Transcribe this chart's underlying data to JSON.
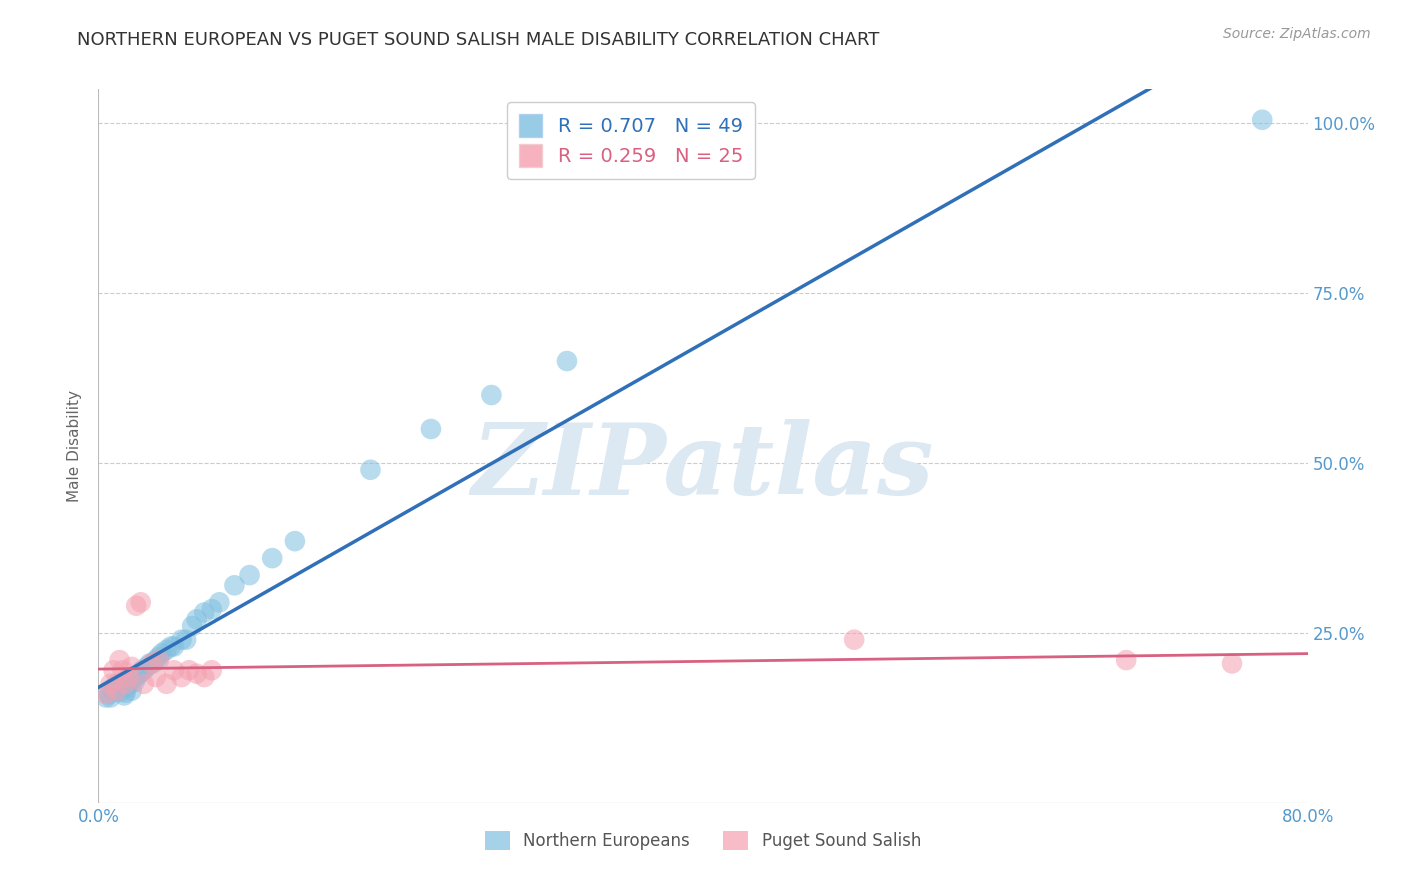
{
  "title": "NORTHERN EUROPEAN VS PUGET SOUND SALISH MALE DISABILITY CORRELATION CHART",
  "source": "Source: ZipAtlas.com",
  "ylabel": "Male Disability",
  "xlim": [
    0.0,
    0.8
  ],
  "ylim": [
    0.0,
    1.05
  ],
  "yticks": [
    0.0,
    0.25,
    0.5,
    0.75,
    1.0
  ],
  "xticks": [
    0.0,
    0.2,
    0.4,
    0.6,
    0.8
  ],
  "ytick_labels": [
    "",
    "25.0%",
    "50.0%",
    "75.0%",
    "100.0%"
  ],
  "xtick_labels": [
    "0.0%",
    "",
    "",
    "",
    "80.0%"
  ],
  "blue_R": 0.707,
  "blue_N": 49,
  "pink_R": 0.259,
  "pink_N": 25,
  "blue_color": "#7fbfdf",
  "pink_color": "#f4a0b0",
  "blue_line_color": "#3070b8",
  "pink_line_color": "#d86080",
  "watermark": "ZIPatlas",
  "watermark_color": "#dce8f2",
  "background_color": "#ffffff",
  "grid_color": "#cccccc",
  "title_color": "#333333",
  "axis_label_color": "#666666",
  "blue_scatter_x": [
    0.005,
    0.007,
    0.008,
    0.01,
    0.01,
    0.012,
    0.013,
    0.014,
    0.015,
    0.016,
    0.017,
    0.018,
    0.019,
    0.02,
    0.021,
    0.022,
    0.023,
    0.024,
    0.025,
    0.026,
    0.027,
    0.028,
    0.029,
    0.03,
    0.032,
    0.034,
    0.036,
    0.038,
    0.04,
    0.042,
    0.045,
    0.048,
    0.05,
    0.055,
    0.058,
    0.062,
    0.065,
    0.07,
    0.075,
    0.08,
    0.09,
    0.1,
    0.115,
    0.13,
    0.18,
    0.22,
    0.26,
    0.31,
    0.77
  ],
  "blue_scatter_y": [
    0.155,
    0.16,
    0.155,
    0.165,
    0.17,
    0.175,
    0.168,
    0.163,
    0.172,
    0.178,
    0.158,
    0.162,
    0.17,
    0.175,
    0.18,
    0.165,
    0.185,
    0.178,
    0.185,
    0.188,
    0.19,
    0.192,
    0.195,
    0.195,
    0.2,
    0.205,
    0.205,
    0.21,
    0.215,
    0.22,
    0.225,
    0.23,
    0.23,
    0.24,
    0.24,
    0.26,
    0.27,
    0.28,
    0.285,
    0.295,
    0.32,
    0.335,
    0.36,
    0.385,
    0.49,
    0.55,
    0.6,
    0.65,
    1.005
  ],
  "pink_scatter_x": [
    0.005,
    0.008,
    0.01,
    0.012,
    0.014,
    0.016,
    0.018,
    0.02,
    0.022,
    0.025,
    0.028,
    0.03,
    0.035,
    0.038,
    0.04,
    0.045,
    0.05,
    0.055,
    0.06,
    0.065,
    0.07,
    0.075,
    0.5,
    0.68,
    0.75
  ],
  "pink_scatter_y": [
    0.16,
    0.175,
    0.195,
    0.165,
    0.21,
    0.195,
    0.175,
    0.185,
    0.2,
    0.29,
    0.295,
    0.175,
    0.205,
    0.185,
    0.21,
    0.175,
    0.195,
    0.185,
    0.195,
    0.19,
    0.185,
    0.195,
    0.24,
    0.21,
    0.205
  ]
}
